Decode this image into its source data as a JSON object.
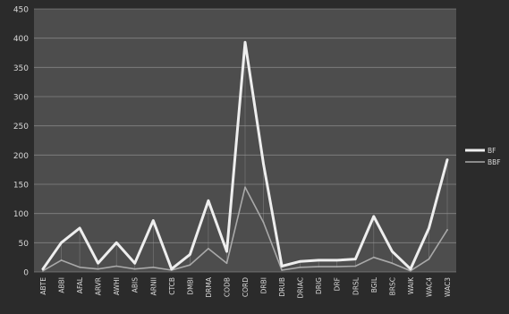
{
  "colors": {
    "page_bg": "#2b2b2b",
    "plot_bg": "#4d4d4d",
    "grid": "#9a9a9a",
    "axis_text": "#d8d8d8",
    "series_primary": "#eeeeee",
    "series_secondary": "#a9a9a9"
  },
  "chart_data": {
    "type": "line",
    "title": "",
    "xlabel": "",
    "ylabel": "",
    "ylim": [
      0,
      450
    ],
    "yticks": [
      0,
      50,
      100,
      150,
      200,
      250,
      300,
      350,
      400,
      450
    ],
    "grid": "horizontal",
    "legend_position": "right",
    "categories": [
      "ABTE",
      "ABBI",
      "AFAL",
      "ARVR",
      "AWHI",
      "ABIS",
      "ARNII",
      "CTCB",
      "DMBI",
      "DRMA",
      "CODB",
      "CORD",
      "DRBI",
      "DRUB",
      "DRIAC",
      "DRIG",
      "DRF",
      "DRSL",
      "BGIL",
      "BRSC",
      "WAIK",
      "WAC4",
      "WAC3"
    ],
    "series": [
      {
        "name": "BF",
        "values": [
          5,
          50,
          75,
          15,
          50,
          15,
          88,
          5,
          30,
          122,
          35,
          393,
          185,
          10,
          18,
          20,
          20,
          22,
          95,
          35,
          5,
          75,
          192
        ]
      },
      {
        "name": "BBF",
        "values": [
          2,
          20,
          8,
          5,
          10,
          5,
          8,
          3,
          12,
          40,
          15,
          145,
          85,
          3,
          8,
          9,
          9,
          10,
          25,
          15,
          2,
          22,
          72
        ]
      }
    ]
  }
}
